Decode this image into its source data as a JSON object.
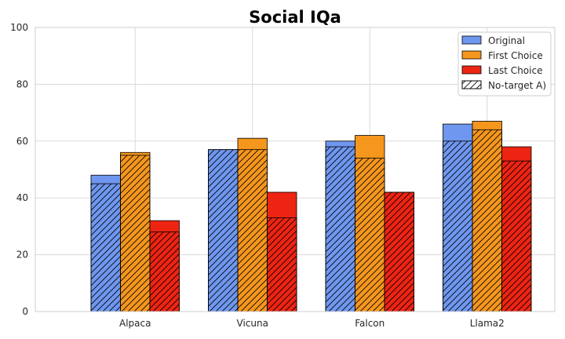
{
  "chart_data": {
    "type": "bar",
    "title": "Social IQa",
    "xlabel": "",
    "ylabel": "",
    "ylim": [
      0,
      100
    ],
    "yticks": [
      0,
      20,
      40,
      60,
      80,
      100
    ],
    "grid": true,
    "categories": [
      "Alpaca",
      "Vicuna",
      "Falcon",
      "Llama2"
    ],
    "series": [
      {
        "name": "Original",
        "color": "#6f97ef",
        "values": [
          48,
          57,
          60,
          66
        ],
        "no_target": [
          45,
          57,
          58,
          60
        ]
      },
      {
        "name": "First Choice",
        "color": "#f5961d",
        "values": [
          56,
          61,
          62,
          67
        ],
        "no_target": [
          55,
          57,
          54,
          64
        ]
      },
      {
        "name": "Last Choice",
        "color": "#ee2413",
        "values": [
          32,
          42,
          42,
          58
        ],
        "no_target": [
          28,
          33,
          42,
          53
        ]
      }
    ],
    "hatched_legend_label": "No-target A)",
    "legend_position": "top-right"
  }
}
